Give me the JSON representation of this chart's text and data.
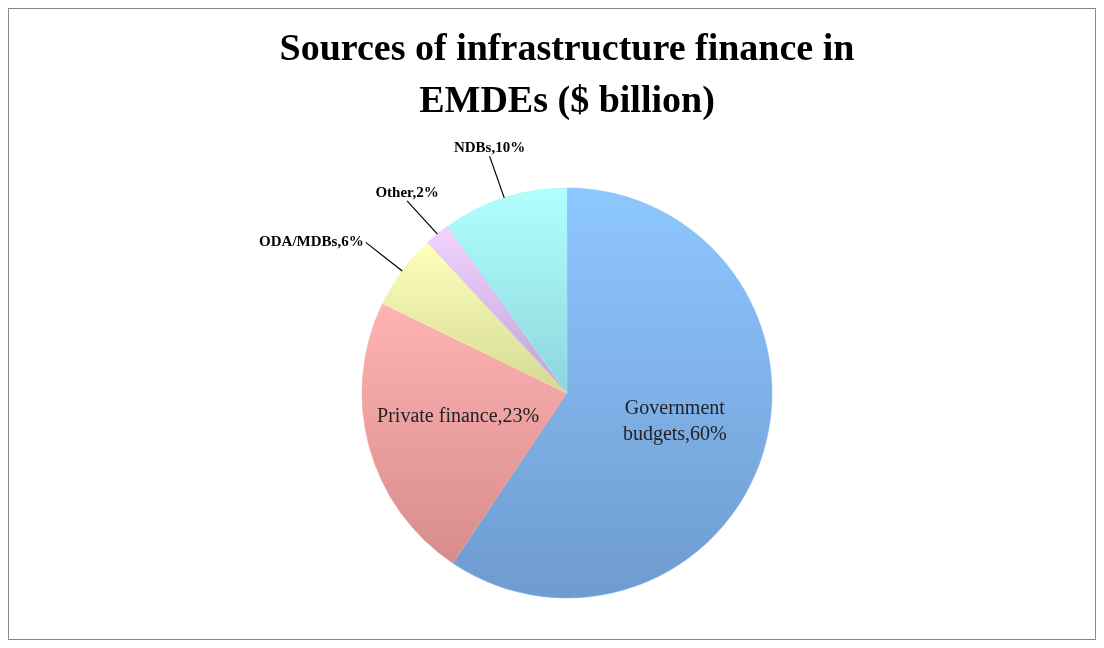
{
  "chart_data": {
    "type": "pie",
    "title": "Sources of infrastructure finance in EMDEs ($ billion)",
    "categories": [
      "Government budgets",
      "Private finance",
      "ODA/MDBs",
      "Other",
      "NDBs"
    ],
    "values": [
      60,
      23,
      6,
      2,
      10
    ],
    "value_labels": [
      "60%",
      "23%",
      "6%",
      "2%",
      "10%"
    ],
    "colors": [
      "#7db0ec",
      "#f49e9e",
      "#eef6a6",
      "#d7b9f4",
      "#9df3f8"
    ],
    "legend": false
  }
}
